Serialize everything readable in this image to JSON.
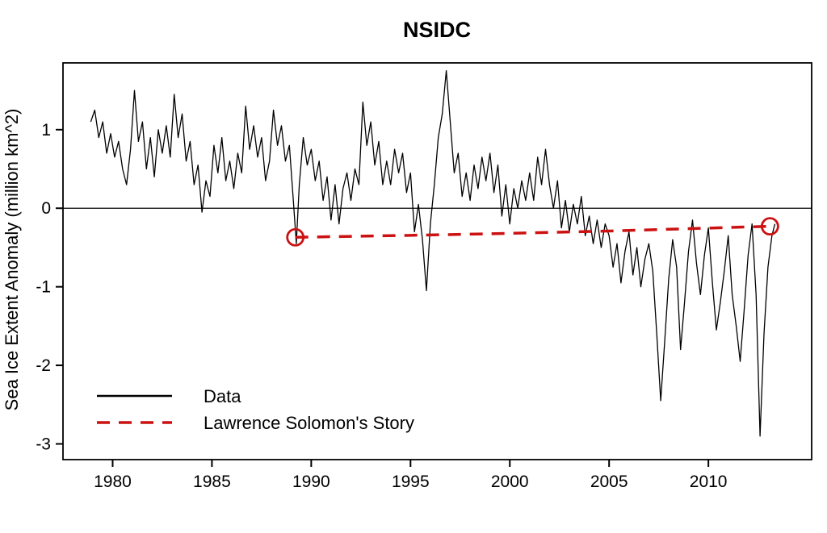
{
  "chart_data": {
    "type": "line",
    "title": "NSIDC",
    "xlabel": "",
    "ylabel": "Sea Ice Extent Anomaly (million km^2)",
    "xlim": [
      1977.5,
      2015.2
    ],
    "ylim": [
      -3.2,
      1.85
    ],
    "x_ticks": [
      1980,
      1985,
      1990,
      1995,
      2000,
      2005,
      2010
    ],
    "y_ticks": [
      -3,
      -2,
      -1,
      0,
      1
    ],
    "grid": false,
    "reference_line_y": 0,
    "legend_position": "bottom-left",
    "series": [
      {
        "name": "Data",
        "color": "#000000",
        "style": "solid",
        "line_width": 1.3,
        "points": [
          [
            1978.9,
            1.1
          ],
          [
            1979.1,
            1.25
          ],
          [
            1979.3,
            0.9
          ],
          [
            1979.5,
            1.1
          ],
          [
            1979.7,
            0.7
          ],
          [
            1979.9,
            0.95
          ],
          [
            1980.1,
            0.65
          ],
          [
            1980.3,
            0.85
          ],
          [
            1980.5,
            0.5
          ],
          [
            1980.7,
            0.3
          ],
          [
            1980.9,
            0.75
          ],
          [
            1981.1,
            1.5
          ],
          [
            1981.3,
            0.85
          ],
          [
            1981.5,
            1.1
          ],
          [
            1981.7,
            0.5
          ],
          [
            1981.9,
            0.9
          ],
          [
            1982.1,
            0.4
          ],
          [
            1982.3,
            1.0
          ],
          [
            1982.5,
            0.7
          ],
          [
            1982.7,
            1.05
          ],
          [
            1982.9,
            0.65
          ],
          [
            1983.1,
            1.45
          ],
          [
            1983.3,
            0.9
          ],
          [
            1983.5,
            1.2
          ],
          [
            1983.7,
            0.6
          ],
          [
            1983.9,
            0.85
          ],
          [
            1984.1,
            0.3
          ],
          [
            1984.3,
            0.55
          ],
          [
            1984.5,
            -0.05
          ],
          [
            1984.7,
            0.35
          ],
          [
            1984.9,
            0.15
          ],
          [
            1985.1,
            0.8
          ],
          [
            1985.3,
            0.45
          ],
          [
            1985.5,
            0.9
          ],
          [
            1985.7,
            0.35
          ],
          [
            1985.9,
            0.6
          ],
          [
            1986.1,
            0.25
          ],
          [
            1986.3,
            0.7
          ],
          [
            1986.5,
            0.45
          ],
          [
            1986.7,
            1.3
          ],
          [
            1986.9,
            0.75
          ],
          [
            1987.1,
            1.05
          ],
          [
            1987.3,
            0.65
          ],
          [
            1987.5,
            0.9
          ],
          [
            1987.7,
            0.35
          ],
          [
            1987.9,
            0.6
          ],
          [
            1988.1,
            1.25
          ],
          [
            1988.3,
            0.8
          ],
          [
            1988.5,
            1.05
          ],
          [
            1988.7,
            0.6
          ],
          [
            1988.9,
            0.8
          ],
          [
            1989.1,
            0.1
          ],
          [
            1989.25,
            -0.45
          ],
          [
            1989.4,
            0.3
          ],
          [
            1989.6,
            0.9
          ],
          [
            1989.8,
            0.55
          ],
          [
            1990.0,
            0.75
          ],
          [
            1990.2,
            0.35
          ],
          [
            1990.4,
            0.6
          ],
          [
            1990.6,
            0.1
          ],
          [
            1990.8,
            0.4
          ],
          [
            1991.0,
            -0.15
          ],
          [
            1991.2,
            0.3
          ],
          [
            1991.4,
            -0.2
          ],
          [
            1991.6,
            0.25
          ],
          [
            1991.8,
            0.45
          ],
          [
            1992.0,
            0.1
          ],
          [
            1992.2,
            0.5
          ],
          [
            1992.4,
            0.3
          ],
          [
            1992.6,
            1.35
          ],
          [
            1992.8,
            0.8
          ],
          [
            1993.0,
            1.1
          ],
          [
            1993.2,
            0.55
          ],
          [
            1993.4,
            0.85
          ],
          [
            1993.6,
            0.3
          ],
          [
            1993.8,
            0.6
          ],
          [
            1994.0,
            0.3
          ],
          [
            1994.2,
            0.75
          ],
          [
            1994.4,
            0.45
          ],
          [
            1994.6,
            0.7
          ],
          [
            1994.8,
            0.2
          ],
          [
            1995.0,
            0.45
          ],
          [
            1995.2,
            -0.3
          ],
          [
            1995.4,
            0.05
          ],
          [
            1995.6,
            -0.4
          ],
          [
            1995.8,
            -1.05
          ],
          [
            1996.0,
            -0.2
          ],
          [
            1996.2,
            0.3
          ],
          [
            1996.4,
            0.9
          ],
          [
            1996.6,
            1.2
          ],
          [
            1996.8,
            1.75
          ],
          [
            1997.0,
            1.1
          ],
          [
            1997.2,
            0.45
          ],
          [
            1997.4,
            0.7
          ],
          [
            1997.6,
            0.15
          ],
          [
            1997.8,
            0.45
          ],
          [
            1998.0,
            0.1
          ],
          [
            1998.2,
            0.55
          ],
          [
            1998.4,
            0.25
          ],
          [
            1998.6,
            0.65
          ],
          [
            1998.8,
            0.35
          ],
          [
            1999.0,
            0.7
          ],
          [
            1999.2,
            0.2
          ],
          [
            1999.4,
            0.55
          ],
          [
            1999.6,
            -0.1
          ],
          [
            1999.8,
            0.3
          ],
          [
            2000.0,
            -0.2
          ],
          [
            2000.2,
            0.25
          ],
          [
            2000.4,
            0.0
          ],
          [
            2000.6,
            0.35
          ],
          [
            2000.8,
            0.1
          ],
          [
            2001.0,
            0.45
          ],
          [
            2001.2,
            0.1
          ],
          [
            2001.4,
            0.65
          ],
          [
            2001.6,
            0.3
          ],
          [
            2001.8,
            0.75
          ],
          [
            2002.0,
            0.3
          ],
          [
            2002.2,
            0.0
          ],
          [
            2002.4,
            0.35
          ],
          [
            2002.6,
            -0.25
          ],
          [
            2002.8,
            0.1
          ],
          [
            2003.0,
            -0.3
          ],
          [
            2003.2,
            0.05
          ],
          [
            2003.4,
            -0.2
          ],
          [
            2003.6,
            0.15
          ],
          [
            2003.8,
            -0.35
          ],
          [
            2004.0,
            -0.1
          ],
          [
            2004.2,
            -0.45
          ],
          [
            2004.4,
            -0.15
          ],
          [
            2004.6,
            -0.5
          ],
          [
            2004.8,
            -0.2
          ],
          [
            2005.0,
            -0.35
          ],
          [
            2005.2,
            -0.75
          ],
          [
            2005.4,
            -0.45
          ],
          [
            2005.6,
            -0.95
          ],
          [
            2005.8,
            -0.55
          ],
          [
            2006.0,
            -0.3
          ],
          [
            2006.2,
            -0.85
          ],
          [
            2006.4,
            -0.5
          ],
          [
            2006.6,
            -1.0
          ],
          [
            2006.8,
            -0.65
          ],
          [
            2007.0,
            -0.45
          ],
          [
            2007.2,
            -0.8
          ],
          [
            2007.4,
            -1.6
          ],
          [
            2007.6,
            -2.45
          ],
          [
            2007.8,
            -1.7
          ],
          [
            2008.0,
            -0.9
          ],
          [
            2008.2,
            -0.4
          ],
          [
            2008.4,
            -0.75
          ],
          [
            2008.6,
            -1.8
          ],
          [
            2008.8,
            -1.2
          ],
          [
            2009.0,
            -0.55
          ],
          [
            2009.2,
            -0.15
          ],
          [
            2009.4,
            -0.7
          ],
          [
            2009.6,
            -1.1
          ],
          [
            2009.8,
            -0.6
          ],
          [
            2010.0,
            -0.25
          ],
          [
            2010.2,
            -0.95
          ],
          [
            2010.4,
            -1.55
          ],
          [
            2010.6,
            -1.2
          ],
          [
            2010.8,
            -0.8
          ],
          [
            2011.0,
            -0.35
          ],
          [
            2011.2,
            -1.1
          ],
          [
            2011.4,
            -1.5
          ],
          [
            2011.6,
            -1.95
          ],
          [
            2011.8,
            -1.3
          ],
          [
            2012.0,
            -0.6
          ],
          [
            2012.2,
            -0.2
          ],
          [
            2012.4,
            -1.1
          ],
          [
            2012.6,
            -2.9
          ],
          [
            2012.8,
            -1.6
          ],
          [
            2013.0,
            -0.75
          ],
          [
            2013.2,
            -0.35
          ],
          [
            2013.35,
            -0.2
          ]
        ]
      },
      {
        "name": "Lawrence Solomon's Story",
        "color": "#cc1111",
        "style": "dashed",
        "line_width": 3.5,
        "endpoint_markers": "open-circle",
        "points": [
          [
            1989.2,
            -0.37
          ],
          [
            1996.0,
            -0.34
          ],
          [
            2000.0,
            -0.32
          ],
          [
            2005.0,
            -0.29
          ],
          [
            2013.1,
            -0.23
          ]
        ]
      }
    ]
  }
}
